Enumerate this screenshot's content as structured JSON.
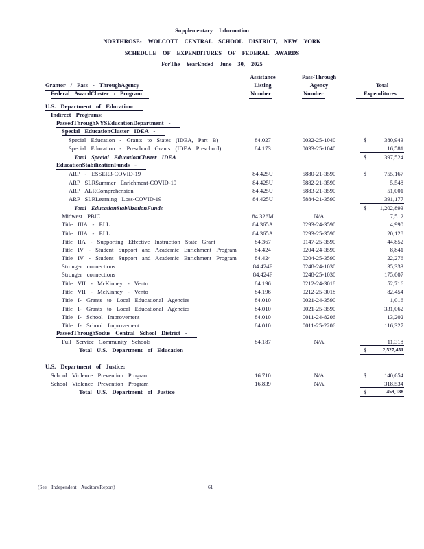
{
  "header": {
    "line1": "Supplementary Information",
    "line2": "NORTHROSE- WOLCOTT CENTRAL SCHOOL DISTRICT, NEW YORK",
    "line3": "SCHEDULE OF EXPENDITURES OF FEDERAL AWARDS",
    "line4": "ForThe YearEnded June 30, 2025"
  },
  "columns": {
    "grantor_line1": "Grantor / Pass - ThroughAgency",
    "grantor_line2": "Federal AwardCluster / Program",
    "aln_line1": "Assistance",
    "aln_line2": "Listing",
    "aln_line3": "Number",
    "pt_line1": "Pass-Through",
    "pt_line2": "Agency",
    "pt_line3": "Number",
    "total_line1": "Total",
    "total_line2": "Expenditures"
  },
  "rows": [
    {
      "desc": "U.S. Department of Education:",
      "indent": 0,
      "style": "heading"
    },
    {
      "desc": "Indirect Programs:",
      "indent": 1,
      "style": "heading"
    },
    {
      "desc": "PassedThroughNYSEducationDepartment -",
      "indent": 2,
      "style": "heading"
    },
    {
      "desc": "Special EducationCluster IDEA -",
      "indent": 3,
      "style": "heading"
    },
    {
      "desc": "Special Education - Grants to States (IDEA, Part B)",
      "indent": 4,
      "aln": "84.027",
      "pt": "0032-25-1040",
      "dollar": "$",
      "amount": "380,943"
    },
    {
      "desc": "Special Education - Preschool Grants (IDEA Preschool)",
      "indent": 4,
      "aln": "84.173",
      "pt": "0033-25-1040",
      "amount": "16,581"
    },
    {
      "desc": "Total Special EducationCluster IDEA",
      "indent": 5,
      "style": "total-italic",
      "dollar": "$",
      "amount": "397,524",
      "topline": true
    },
    {
      "desc": "EducationStabilizationFunds -",
      "indent": 2,
      "style": "heading"
    },
    {
      "desc": "ARP - ESSER3-COVID-19",
      "indent": 4,
      "aln": "84.425U",
      "pt": "5880-21-3590",
      "dollar": "$",
      "amount": "755,167"
    },
    {
      "desc": "ARP SLRSummer Enrichment-COVID-19",
      "indent": 4,
      "aln": "84.425U",
      "pt": "5882-21-3590",
      "amount": "5,548"
    },
    {
      "desc": "ARP ALRComprehension",
      "indent": 4,
      "aln": "84.425U",
      "pt": "5883-21-3590",
      "amount": "51,001"
    },
    {
      "desc": "ARP SLRLearning Loss-COVID-19",
      "indent": 4,
      "aln": "84.425U",
      "pt": "5884-21-3590",
      "amount": "391,177"
    },
    {
      "desc": "Total EducationStabilizationFunds",
      "indent": 5,
      "style": "total-italic",
      "dollar": "$",
      "amount": "1,202,893",
      "topline": true
    },
    {
      "desc": "Midwest PBIC",
      "indent": 3,
      "aln": "84.326M",
      "pt": "N/A",
      "amount": "7,512"
    },
    {
      "desc": "Title IIIA - ELL",
      "indent": 3,
      "aln": "84.365A",
      "pt": "0293-24-3590",
      "amount": "4,990"
    },
    {
      "desc": "Title IIIA - ELL",
      "indent": 3,
      "aln": "84.365A",
      "pt": "0293-25-3590",
      "amount": "20,128"
    },
    {
      "desc": "Title IIA - Supporting Effective Instruction State Grant",
      "indent": 3,
      "aln": "84.367",
      "pt": "0147-25-3590",
      "amount": "44,852"
    },
    {
      "desc": "Title IV - Student Support and Academic Enrichment Program",
      "indent": 3,
      "aln": "84.424",
      "pt": "0204-24-3590",
      "amount": "8,841"
    },
    {
      "desc": "Title IV - Student Support and Academic Enrichment Program",
      "indent": 3,
      "aln": "84.424",
      "pt": "0204-25-3590",
      "amount": "22,276"
    },
    {
      "desc": "Stronger connections",
      "indent": 3,
      "aln": "84.424F",
      "pt": "0248-24-1030",
      "amount": "35,333"
    },
    {
      "desc": "Stronger connections",
      "indent": 3,
      "aln": "84.424F",
      "pt": "0248-25-1030",
      "amount": "175,007"
    },
    {
      "desc": "Title VII - McKinney - Vento",
      "indent": 3,
      "aln": "84.196",
      "pt": "0212-24-3018",
      "amount": "52,716"
    },
    {
      "desc": "Title VII - McKinney - Vento",
      "indent": 3,
      "aln": "84.196",
      "pt": "0212-25-3018",
      "amount": "82,454"
    },
    {
      "desc": "Title I- Grants to Local Educational Agencies",
      "indent": 3,
      "aln": "84.010",
      "pt": "0021-24-3590",
      "amount": "1,016"
    },
    {
      "desc": "Title I- Grants to Local Educational Agencies",
      "indent": 3,
      "aln": "84.010",
      "pt": "0021-25-3590",
      "amount": "331,062"
    },
    {
      "desc": "Title I- School Improvement",
      "indent": 3,
      "aln": "84.010",
      "pt": "0011-24-8206",
      "amount": "13,202"
    },
    {
      "desc": "Title I- School Improvement",
      "indent": 3,
      "aln": "84.010",
      "pt": "0011-25-2206",
      "amount": "116,327"
    },
    {
      "desc": "PassedThroughSodus Central School District -",
      "indent": 2,
      "style": "heading"
    },
    {
      "desc": "Full Service Community Schools",
      "indent": 3,
      "aln": "84.187",
      "pt": "N/A",
      "amount": "11,318"
    },
    {
      "desc": "Total U.S. Department of Education",
      "indent": 6,
      "style": "total",
      "dollar": "$",
      "amount": "2,527,451",
      "topline": true,
      "double": true,
      "boldamt": true
    },
    {
      "desc": "",
      "indent": 0,
      "style": "blank"
    },
    {
      "desc": "U.S. Department of Justice:",
      "indent": 0,
      "style": "heading"
    },
    {
      "desc": "School Violence Prevention Program",
      "indent": 1,
      "aln": "16.710",
      "pt": "N/A",
      "dollar": "$",
      "amount": "140,654"
    },
    {
      "desc": "School Violence Prevention Program",
      "indent": 1,
      "aln": "16.839",
      "pt": "N/A",
      "amount": "318,534"
    },
    {
      "desc": "Total U.S. Department of Justice",
      "indent": 6,
      "style": "total",
      "dollar": "$",
      "amount": "459,188",
      "topline": true,
      "double": true,
      "boldamt": true
    }
  ],
  "footer": {
    "note": "(See Independent Auditors'Report)",
    "page_number": "61"
  }
}
